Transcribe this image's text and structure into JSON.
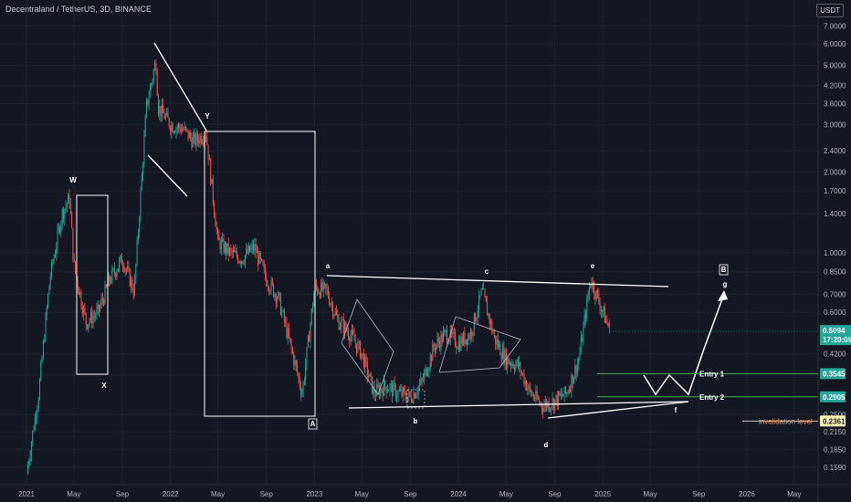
{
  "header": {
    "title": "Decentraland / TetherUS, 3D, BINANCE",
    "unit": "USDT"
  },
  "colors": {
    "background": "#131722",
    "up": "#26a69a",
    "down": "#ef5350",
    "drawing": "#ffffff",
    "entry_line": "#4caf50",
    "price_tag": "#26a69a",
    "entry_tag": "#26a69a",
    "invalidation_tag": "#fff3b0"
  },
  "chart_data": {
    "type": "candlestick",
    "yscale": "log",
    "ylim": [
      0.14,
      7.6
    ],
    "y_ticks": [
      "7.0000",
      "6.0000",
      "5.0000",
      "4.2000",
      "3.6000",
      "3.0000",
      "2.4000",
      "2.0000",
      "1.7000",
      "1.4000",
      "1.0000",
      "0.8500",
      "0.7000",
      "0.6000",
      "0.4200",
      "0.3500",
      "0.2500",
      "0.2150",
      "0.1850",
      "0.1590"
    ],
    "x_ticks": [
      "2021",
      "May",
      "Sep",
      "2022",
      "May",
      "Sep",
      "2023",
      "May",
      "Sep",
      "2024",
      "May",
      "Sep",
      "2025",
      "May",
      "Sep",
      "2026",
      "May"
    ],
    "price_path": [
      [
        "2021-01",
        0.15
      ],
      [
        "2021-02",
        0.3
      ],
      [
        "2021-03",
        0.8
      ],
      [
        "2021-04",
        1.4
      ],
      [
        "2021-04-20",
        1.6
      ],
      [
        "2021-05",
        0.9
      ],
      [
        "2021-06",
        0.55
      ],
      [
        "2021-07",
        0.6
      ],
      [
        "2021-08",
        0.8
      ],
      [
        "2021-09",
        0.95
      ],
      [
        "2021-10",
        0.72
      ],
      [
        "2021-11",
        3.5
      ],
      [
        "2021-11-25",
        5.2
      ],
      [
        "2021-12",
        3.5
      ],
      [
        "2022-01",
        3.0
      ],
      [
        "2022-02",
        2.9
      ],
      [
        "2022-03",
        2.6
      ],
      [
        "2022-04",
        2.8
      ],
      [
        "2022-05",
        1.1
      ],
      [
        "2022-06",
        1.0
      ],
      [
        "2022-07",
        0.95
      ],
      [
        "2022-08",
        1.05
      ],
      [
        "2022-09",
        0.8
      ],
      [
        "2022-10",
        0.68
      ],
      [
        "2022-11",
        0.45
      ],
      [
        "2022-12",
        0.3
      ],
      [
        "2023-01",
        0.74
      ],
      [
        "2023-02",
        0.72
      ],
      [
        "2023-03",
        0.56
      ],
      [
        "2023-04",
        0.5
      ],
      [
        "2023-05",
        0.42
      ],
      [
        "2023-06",
        0.3
      ],
      [
        "2023-07",
        0.32
      ],
      [
        "2023-08",
        0.3
      ],
      [
        "2023-09",
        0.29
      ],
      [
        "2023-10",
        0.33
      ],
      [
        "2023-11",
        0.45
      ],
      [
        "2023-12",
        0.5
      ],
      [
        "2024-01",
        0.46
      ],
      [
        "2024-02",
        0.5
      ],
      [
        "2024-03",
        0.72
      ],
      [
        "2024-04",
        0.48
      ],
      [
        "2024-05",
        0.4
      ],
      [
        "2024-06",
        0.38
      ],
      [
        "2024-07",
        0.3
      ],
      [
        "2024-08",
        0.27
      ],
      [
        "2024-09",
        0.28
      ],
      [
        "2024-10",
        0.3
      ],
      [
        "2024-11",
        0.4
      ],
      [
        "2024-12",
        0.8
      ],
      [
        "2025-01",
        0.6
      ],
      [
        "2025-01-20",
        0.5094
      ]
    ],
    "current_price": {
      "value": "0.5094",
      "countdown": "17:20:09"
    },
    "entry_lines": [
      {
        "label": "Entry 1",
        "price": "0.3545"
      },
      {
        "label": "Entry 2",
        "price": "0.2905"
      }
    ],
    "invalidation": {
      "label": "invalidation level",
      "price": "0.2361"
    },
    "wave_labels": {
      "W": "W",
      "X": "X",
      "Y": "Y",
      "A": "A",
      "B": "B",
      "a": "a",
      "b": "b",
      "c": "c",
      "d": "d",
      "e": "e",
      "f": "f",
      "g": "g"
    }
  }
}
